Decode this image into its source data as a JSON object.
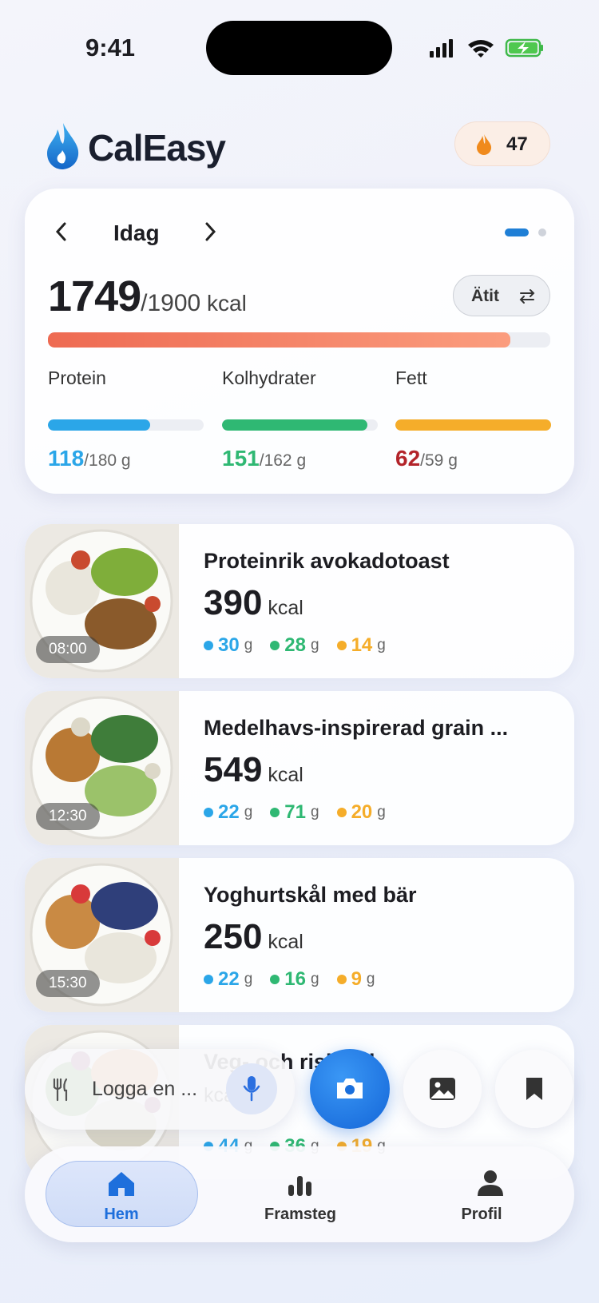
{
  "status_bar": {
    "time": "9:41"
  },
  "header": {
    "brand": "CalEasy",
    "streak": "47"
  },
  "summary": {
    "day_label": "Idag",
    "consumed": 1749,
    "goal": 1900,
    "unit": "kcal",
    "mode_button": "Ätit",
    "macros": [
      {
        "name": "Protein",
        "value": 118,
        "goal": 180,
        "unit": "g",
        "color": "#2ba6e8",
        "value_color": "#2ba6e8"
      },
      {
        "name": "Kolhydrater",
        "value": 151,
        "goal": 162,
        "unit": "g",
        "color": "#2fb873",
        "value_color": "#2fb873"
      },
      {
        "name": "Fett",
        "value": 62,
        "goal": 59,
        "unit": "g",
        "color": "#f5ad2a",
        "value_color": "#b3242a"
      }
    ]
  },
  "meals": [
    {
      "name": "Proteinrik avokadotoast",
      "kcal": 390,
      "unit": "kcal",
      "time": "08:00",
      "macros": [
        30,
        28,
        14
      ],
      "macro_unit": "g"
    },
    {
      "name": "Medelhavs-inspirerad grain ...",
      "kcal": 549,
      "unit": "kcal",
      "time": "12:30",
      "macros": [
        22,
        71,
        20
      ],
      "macro_unit": "g"
    },
    {
      "name": "Yoghurtskål med bär",
      "kcal": 250,
      "unit": "kcal",
      "time": "15:30",
      "macros": [
        22,
        16,
        9
      ],
      "macro_unit": "g"
    },
    {
      "name": "Veg- och risbowl",
      "unit": "kcal",
      "macros": [
        44,
        36,
        19
      ],
      "macro_unit": "g"
    }
  ],
  "input": {
    "placeholder": "Logga en ..."
  },
  "nav": [
    {
      "label": "Hem"
    },
    {
      "label": "Framsteg"
    },
    {
      "label": "Profil"
    }
  ]
}
